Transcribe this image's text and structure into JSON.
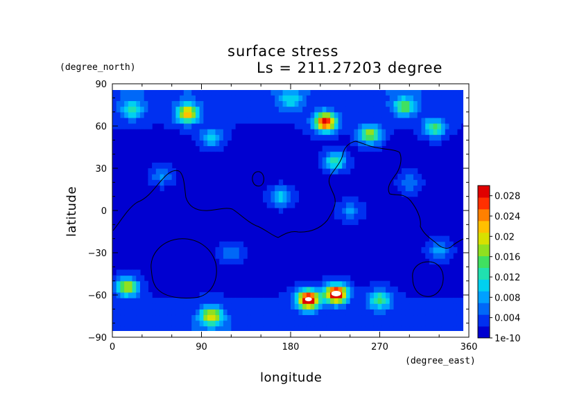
{
  "chart_data": {
    "type": "heatmap",
    "title": "surface stress",
    "subtitle": "Ls = 211.27203 degree",
    "xlabel": "longitude",
    "ylabel": "latitude",
    "x_unit": "(degree_east)",
    "y_unit": "(degree_north)",
    "xlim": [
      0,
      360
    ],
    "ylim": [
      -90,
      90
    ],
    "x_ticks": [
      "0",
      "90",
      "180",
      "270",
      "360"
    ],
    "y_ticks": [
      "90",
      "60",
      "30",
      "0",
      "−30",
      "−60",
      "−90"
    ],
    "x_tick_values": [
      0,
      90,
      180,
      270,
      360
    ],
    "y_tick_values": [
      90,
      60,
      30,
      0,
      -30,
      -60,
      -90
    ],
    "colorbar": {
      "min": 1e-10,
      "max": 0.03,
      "tick_labels": [
        "1e-10",
        "0.004",
        "0.008",
        "0.012",
        "0.016",
        "0.02",
        "0.024",
        "0.028"
      ],
      "tick_values": [
        0,
        0.004,
        0.008,
        0.012,
        0.016,
        0.02,
        0.024,
        0.028
      ],
      "colors": [
        "#0000d0",
        "#0030f0",
        "#0068f8",
        "#00a0ff",
        "#00d0f0",
        "#20e0b0",
        "#40e060",
        "#90e020",
        "#d8e000",
        "#ffc000",
        "#ff8000",
        "#ff3000",
        "#e00000"
      ]
    },
    "field_peaks": [
      {
        "lon": 215,
        "lat": 63,
        "value": 0.026
      },
      {
        "lon": 198,
        "lat": -63,
        "value": 0.03
      },
      {
        "lon": 226,
        "lat": -59,
        "value": 0.03
      },
      {
        "lon": 76,
        "lat": 69,
        "value": 0.02
      },
      {
        "lon": 100,
        "lat": -75,
        "value": 0.018
      },
      {
        "lon": 15,
        "lat": -54,
        "value": 0.017
      },
      {
        "lon": 260,
        "lat": 54,
        "value": 0.016
      },
      {
        "lon": 295,
        "lat": 74,
        "value": 0.013
      },
      {
        "lon": 325,
        "lat": 59,
        "value": 0.012
      },
      {
        "lon": 270,
        "lat": -63,
        "value": 0.013
      },
      {
        "lon": 225,
        "lat": 35,
        "value": 0.012
      },
      {
        "lon": 170,
        "lat": 10,
        "value": 0.009
      },
      {
        "lon": 100,
        "lat": 52,
        "value": 0.009
      },
      {
        "lon": 180,
        "lat": 78,
        "value": 0.008
      },
      {
        "lon": 330,
        "lat": -28,
        "value": 0.007
      },
      {
        "lon": 20,
        "lat": 72,
        "value": 0.011
      },
      {
        "lon": 50,
        "lat": 25,
        "value": 0.006
      },
      {
        "lon": 300,
        "lat": 20,
        "value": 0.005
      },
      {
        "lon": 120,
        "lat": -30,
        "value": 0.005
      },
      {
        "lon": 240,
        "lat": 0,
        "value": 0.006
      }
    ]
  }
}
